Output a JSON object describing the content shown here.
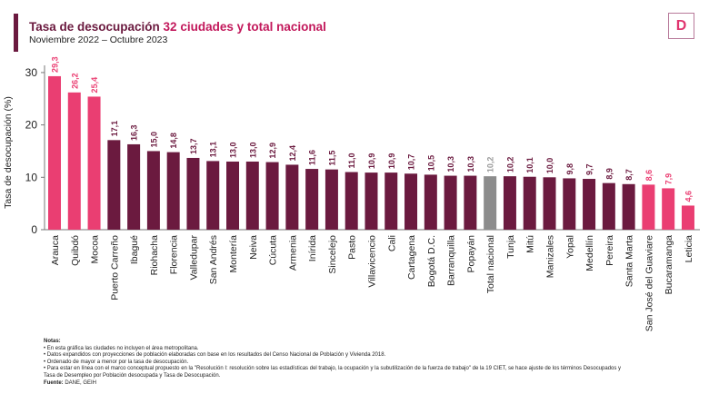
{
  "header": {
    "title_a": "Tasa de desocupación ",
    "title_b": "32 ciudades y total nacional",
    "subtitle": "Noviembre 2022 – Octubre 2023",
    "logo": "D"
  },
  "chart_data": {
    "type": "bar",
    "ylabel": "Tasa de desocupación (%)",
    "ylim": [
      0,
      30
    ],
    "yticks": [
      0,
      10,
      20,
      30
    ],
    "categories": [
      "Arauca",
      "Quibdó",
      "Mocoa",
      "Puerto Carreño",
      "Ibagué",
      "Riohacha",
      "Florencia",
      "Valledupar",
      "San Andrés",
      "Montería",
      "Neiva",
      "Cúcuta",
      "Armenia",
      "Inírida",
      "Sincelejo",
      "Pasto",
      "Villavicencio",
      "Cali",
      "Cartagena",
      "Bogotá D.C.",
      "Barranquilla",
      "Popayán",
      "Total nacional",
      "Tunja",
      "Mitú",
      "Manizales",
      "Yopal",
      "Medellín",
      "Pereira",
      "Santa Marta",
      "San José del Guaviare",
      "Bucaramanga",
      "Leticia"
    ],
    "values": [
      29.3,
      26.2,
      25.4,
      17.1,
      16.3,
      15.0,
      14.8,
      13.7,
      13.1,
      13.0,
      13.0,
      12.9,
      12.4,
      11.6,
      11.5,
      11.0,
      10.9,
      10.9,
      10.7,
      10.5,
      10.3,
      10.3,
      10.2,
      10.2,
      10.1,
      10.0,
      9.8,
      9.7,
      8.9,
      8.7,
      8.6,
      7.9,
      4.6
    ],
    "labels": [
      "29,3",
      "26,2",
      "25,4",
      "17,1",
      "16,3",
      "15,0",
      "14,8",
      "13,7",
      "13,1",
      "13,0",
      "13,0",
      "12,9",
      "12,4",
      "11,6",
      "11,5",
      "11,0",
      "10,9",
      "10,9",
      "10,7",
      "10,5",
      "10,3",
      "10,3",
      "10,2",
      "10,2",
      "10,1",
      "10,0",
      "9,8",
      "9,7",
      "8,9",
      "8,7",
      "8,6",
      "7,9",
      "4,6"
    ],
    "groups": [
      "high",
      "high",
      "high",
      "mid",
      "mid",
      "mid",
      "mid",
      "mid",
      "mid",
      "mid",
      "mid",
      "mid",
      "mid",
      "mid",
      "mid",
      "mid",
      "mid",
      "mid",
      "mid",
      "mid",
      "mid",
      "mid",
      "total",
      "mid",
      "mid",
      "mid",
      "mid",
      "mid",
      "mid",
      "mid",
      "low",
      "low",
      "low"
    ],
    "colors": {
      "high": "#ea3e72",
      "low": "#ea3e72",
      "mid": "#6b1a3f",
      "total": "#8c8c8c"
    },
    "grid": false
  },
  "notes": {
    "heading": "Notas:",
    "items": [
      "• En esta gráfica las ciudades no incluyen el área metropolitana.",
      "• Datos expandidos con proyecciones de población elaboradas con base en los resultados del Censo Nacional de Población y Vivienda 2018.",
      "• Ordenado de mayor a menor por la tasa de desocupación.",
      "• Para estar en línea con el marco conceptual propuesto en la \"Resolución I: resolución sobre las estadísticas del trabajo, la ocupación y la subutilización de la fuerza de trabajo\" de la 19 CIET, se hace ajuste de los términos Desocupados y Tasa de Desempleo por Población desocupada y Tasa de Desocupación."
    ],
    "source_label": "Fuente:",
    "source": " DANE, GEIH"
  }
}
